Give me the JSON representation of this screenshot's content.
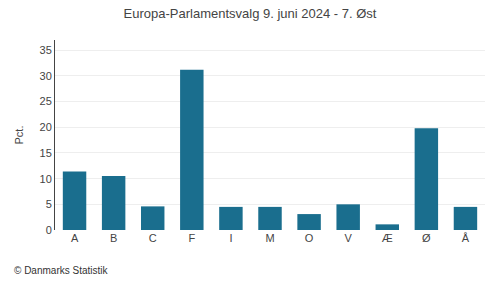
{
  "chart_data": {
    "type": "bar",
    "title": "Europa-Parlamentsvalg 9. juni 2024 - 7. Øst",
    "categories": [
      "A",
      "B",
      "C",
      "F",
      "I",
      "M",
      "O",
      "V",
      "Æ",
      "Ø",
      "Å"
    ],
    "values": [
      11.4,
      10.5,
      4.6,
      31.2,
      4.5,
      4.5,
      3.1,
      5.0,
      1.1,
      19.8,
      4.5
    ],
    "color": "#1a6e8e",
    "ylabel": "Pct.",
    "ylim": [
      0,
      37
    ],
    "yticks": [
      0,
      5,
      10,
      15,
      20,
      25,
      30,
      35
    ],
    "grid": true,
    "annotations": [
      "© Danmarks Statistik"
    ]
  }
}
